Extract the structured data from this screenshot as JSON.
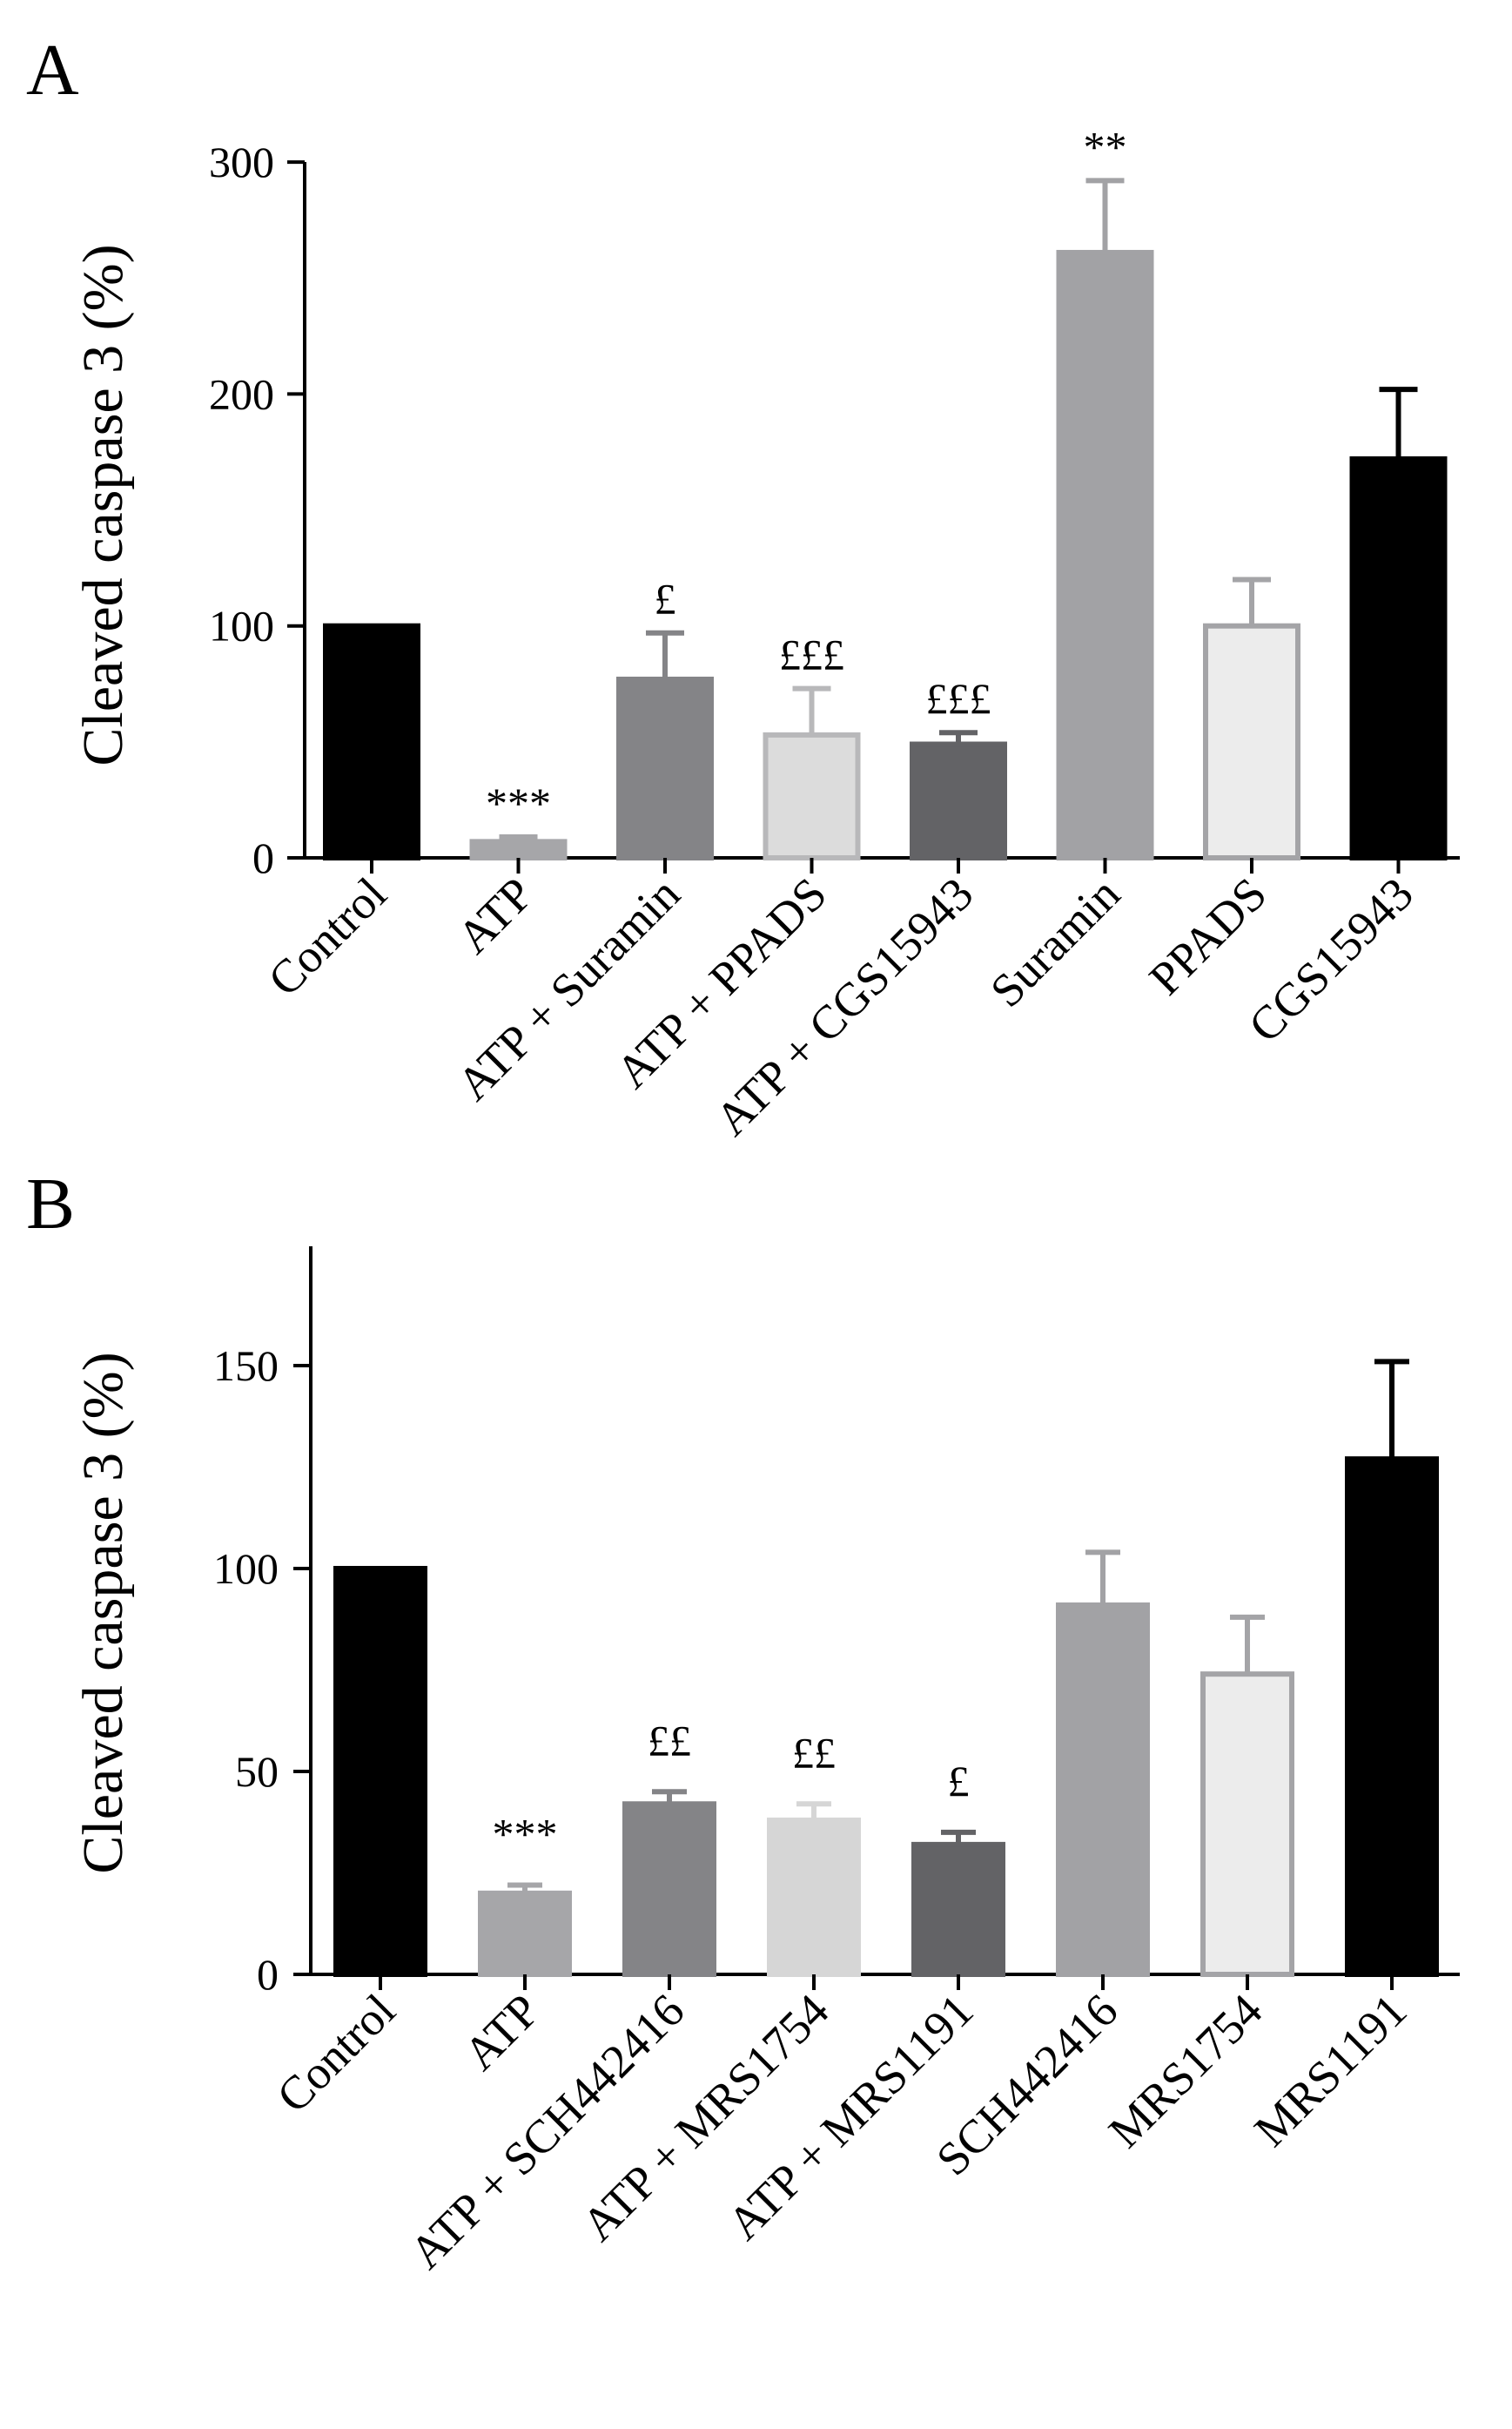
{
  "chart_data": [
    {
      "panel": "A",
      "type": "bar",
      "title": "",
      "xlabel": "",
      "ylabel": "Cleaved caspase 3 (%)",
      "ylim": [
        0,
        300
      ],
      "yticks": [
        0,
        100,
        200,
        300
      ],
      "categories": [
        "Control",
        "ATP",
        "ATP + Suramin",
        "ATP + PPADS",
        "ATP + CGS15943",
        "Suramin",
        "PPADS",
        "CGS15943"
      ],
      "values": [
        100,
        7,
        77,
        53,
        49,
        261,
        100,
        172
      ],
      "errors": [
        0,
        2,
        20,
        20,
        5,
        31,
        20,
        30
      ],
      "fills": [
        "#000000",
        "#a6a6a9",
        "#848487",
        "#dcdcdc",
        "#636366",
        "#a2a2a5",
        "#ececec",
        "#000000"
      ],
      "strokes": [
        "#000000",
        "#a6a6a9",
        "#848487",
        "#b8b8ba",
        "#636366",
        "#a2a2a5",
        "#a4a4a7",
        "#000000"
      ],
      "significance": [
        "",
        "***",
        "£",
        "£££",
        "£££",
        "**",
        "",
        ""
      ]
    },
    {
      "panel": "B",
      "type": "bar",
      "title": "",
      "xlabel": "",
      "ylabel": "Cleaved caspase 3 (%)",
      "ylim": [
        0,
        180
      ],
      "yticks": [
        0,
        50,
        100,
        150
      ],
      "categories": [
        "Control",
        "ATP",
        "ATP + SCH442416",
        "ATP + MRS1754",
        "ATP + MRS1191",
        "SCH442416",
        "MRS1754",
        "MRS1191"
      ],
      "values": [
        100,
        20,
        42,
        38,
        32,
        91,
        74,
        127
      ],
      "errors": [
        0,
        2,
        3,
        4,
        3,
        13,
        14,
        24
      ],
      "fills": [
        "#000000",
        "#a6a6a9",
        "#848487",
        "#d6d6d6",
        "#636366",
        "#a2a2a5",
        "#ececec",
        "#000000"
      ],
      "strokes": [
        "#000000",
        "#a6a6a9",
        "#848487",
        "#d6d6d6",
        "#636366",
        "#a2a2a5",
        "#a4a4a7",
        "#000000"
      ],
      "significance": [
        "",
        "***",
        "££",
        "££",
        "£",
        "",
        "",
        ""
      ]
    }
  ]
}
